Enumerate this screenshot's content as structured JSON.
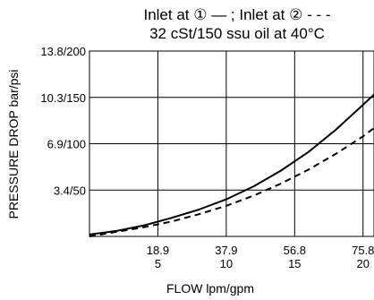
{
  "chart_data": {
    "type": "line",
    "title": "Inlet at ① — ; Inlet at ② - - -",
    "subtitle": "32 cSt/150 ssu oil at 40°C",
    "xlabel": "FLOW lpm/gpm",
    "ylabel": "PRESSURE DROP bar/psi",
    "xlim": [
      0,
      20.8
    ],
    "ylim": [
      0,
      200
    ],
    "x_ticks": [
      {
        "value": 5,
        "line1": "18.9",
        "line2": "5"
      },
      {
        "value": 10,
        "line1": "37.9",
        "line2": "10"
      },
      {
        "value": 15,
        "line1": "56.8",
        "line2": "15"
      },
      {
        "value": 20,
        "line1": "75.8",
        "line2": "20"
      }
    ],
    "y_ticks": [
      {
        "value": 50,
        "label": "3.4/50"
      },
      {
        "value": 100,
        "label": "6.9/100"
      },
      {
        "value": 150,
        "label": "10.3/150"
      },
      {
        "value": 200,
        "label": "13.8/200"
      }
    ],
    "grid": true,
    "series": [
      {
        "style": "solid",
        "color": "#000000",
        "x": [
          0,
          2,
          4,
          6,
          8,
          10,
          12,
          14,
          16,
          18,
          20,
          20.8
        ],
        "y": [
          2,
          6,
          12,
          20,
          29,
          40,
          54,
          71,
          91,
          115,
          142,
          153
        ]
      },
      {
        "style": "dashed",
        "color": "#000000",
        "x": [
          0,
          2,
          4,
          6,
          8,
          10,
          12,
          14,
          16,
          18,
          20,
          20.8
        ],
        "y": [
          0,
          5,
          10,
          16,
          24,
          33,
          44,
          57,
          72,
          89,
          108,
          117
        ]
      }
    ]
  }
}
